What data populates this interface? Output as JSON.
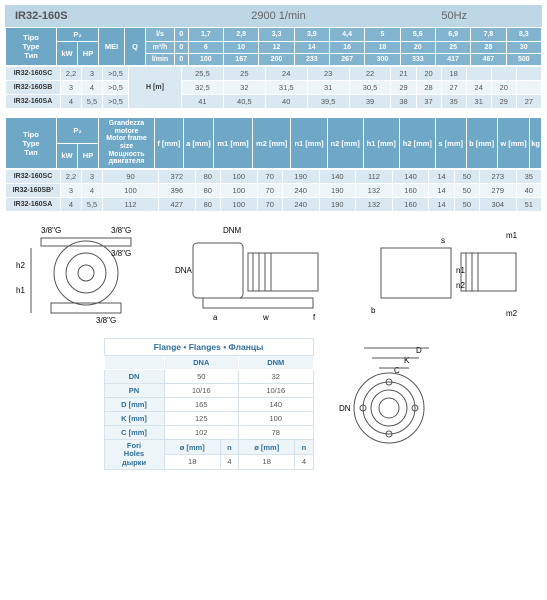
{
  "header": {
    "model": "IR32-160S",
    "rpm": "2900 1/min",
    "hz": "50Hz"
  },
  "t1": {
    "typeLabel": "Tipo\nType\nТип",
    "p2": "P₂",
    "mei": "MEI",
    "q": "Q",
    "hm": "H [m]",
    "kw": "kW",
    "hp": "HP",
    "units_ls": "l/s",
    "units_m3h": "m³/h",
    "units_lmin": "l/min",
    "ls": [
      "0",
      "1,7",
      "2,8",
      "3,3",
      "3,9",
      "4,4",
      "5",
      "5,6",
      "6,9",
      "7,8",
      "8,3"
    ],
    "m3h": [
      "0",
      "6",
      "10",
      "12",
      "14",
      "16",
      "18",
      "20",
      "25",
      "28",
      "30"
    ],
    "lmin": [
      "0",
      "100",
      "167",
      "200",
      "233",
      "267",
      "300",
      "333",
      "417",
      "467",
      "500"
    ],
    "rows": [
      {
        "label": "IR32-160SC",
        "kw": "2,2",
        "hp": "3",
        "mei": ">0,5",
        "v": [
          "25,5",
          "25",
          "24",
          "23",
          "22",
          "21",
          "20",
          "18",
          "",
          "",
          ""
        ]
      },
      {
        "label": "IR32-160SB",
        "kw": "3",
        "hp": "4",
        "mei": ">0,5",
        "v": [
          "32,5",
          "32",
          "31,5",
          "31",
          "30,5",
          "29",
          "28",
          "27",
          "24",
          "20",
          ""
        ]
      },
      {
        "label": "IR32-160SA",
        "kw": "4",
        "hp": "5,5",
        "mei": ">0,5",
        "v": [
          "41",
          "40,5",
          "40",
          "39,5",
          "39",
          "38",
          "37",
          "35",
          "31",
          "29",
          "27"
        ]
      }
    ]
  },
  "t2": {
    "frame": "Grandezza motore\nMotor frame size\nМощность двигателя",
    "cols": [
      "f [mm]",
      "a [mm]",
      "m1 [mm]",
      "m2 [mm]",
      "n1 [mm]",
      "n2 [mm]",
      "h1 [mm]",
      "h2 [mm]",
      "s [mm]",
      "b [mm]",
      "w [mm]",
      "kg"
    ],
    "rows": [
      {
        "label": "IR32-160SC",
        "kw": "2,2",
        "hp": "3",
        "frame": "90",
        "v": [
          "372",
          "80",
          "100",
          "70",
          "190",
          "140",
          "112",
          "140",
          "14",
          "50",
          "273",
          "35"
        ]
      },
      {
        "label": "IR32-160SB¹",
        "kw": "3",
        "hp": "4",
        "frame": "100",
        "v": [
          "396",
          "80",
          "100",
          "70",
          "240",
          "190",
          "132",
          "160",
          "14",
          "50",
          "279",
          "40"
        ]
      },
      {
        "label": "IR32-160SA",
        "kw": "4",
        "hp": "5,5",
        "frame": "112",
        "v": [
          "427",
          "80",
          "100",
          "70",
          "240",
          "190",
          "132",
          "160",
          "14",
          "50",
          "304",
          "51"
        ]
      }
    ]
  },
  "diagLabels": {
    "g": "3/8\"G",
    "h1": "h1",
    "h2": "h2",
    "dnm": "DNM",
    "dna": "DNA",
    "a": "a",
    "w": "w",
    "f": "f",
    "m1": "m1",
    "m2": "m2",
    "n1": "n1",
    "n2": "n2",
    "s": "s",
    "b": "b"
  },
  "flange": {
    "title": "Flange • Flanges • Фланцы",
    "cols": [
      "DNA",
      "DNM"
    ],
    "rows": [
      {
        "l": "DN",
        "a": "50",
        "b": "32"
      },
      {
        "l": "PN",
        "a": "10/16",
        "b": "10/16"
      },
      {
        "l": "D [mm]",
        "a": "165",
        "b": "140"
      },
      {
        "l": "K [mm]",
        "a": "125",
        "b": "100"
      },
      {
        "l": "C [mm]",
        "a": "102",
        "b": "78"
      }
    ],
    "fori": {
      "l": "Fori\nHoles\nдырки",
      "phi": "ø [mm]",
      "n": "n",
      "a_phi": "18",
      "a_n": "4",
      "b_phi": "18",
      "b_n": "4"
    },
    "dlabels": {
      "D": "D",
      "K": "K",
      "C": "C",
      "DN": "DN"
    }
  }
}
